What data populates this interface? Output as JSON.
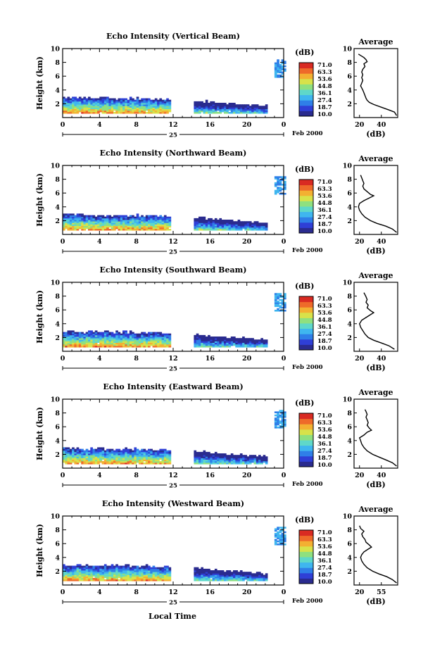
{
  "chart_data": [
    {
      "type": "heatmap",
      "title": "Echo Intensity (Vertical Beam)",
      "ylabel": "Height (km)",
      "x_ticks": [
        "0",
        "4",
        "8",
        "12",
        "16",
        "20",
        "0"
      ],
      "y_ticks": [
        "2",
        "4",
        "6",
        "8",
        "10"
      ],
      "xlim": [
        0,
        24
      ],
      "ylim": [
        0,
        10
      ],
      "date_label": "25",
      "month_label": "Feb 2000",
      "colorbar": {
        "unit": "(dB)",
        "levels": [
          "71.0",
          "63.3",
          "53.6",
          "44.8",
          "36.1",
          "27.4",
          "18.7",
          "10.0"
        ]
      },
      "average": {
        "title": "Average",
        "xlabel": "(dB)",
        "x_ticks": [
          "20",
          "40"
        ],
        "xlim": [
          15,
          55
        ],
        "ylim": [
          0,
          10
        ],
        "y_ticks": [
          "2",
          "4",
          "6",
          "8",
          "10"
        ],
        "profile": [
          [
            54,
            0.3
          ],
          [
            52,
            0.8
          ],
          [
            47,
            1.1
          ],
          [
            40,
            1.5
          ],
          [
            33,
            1.9
          ],
          [
            29,
            2.2
          ],
          [
            27,
            2.5
          ],
          [
            26,
            2.8
          ],
          [
            25,
            3.2
          ],
          [
            24,
            3.6
          ],
          [
            23,
            4.0
          ],
          [
            22,
            4.3
          ],
          [
            21,
            4.6
          ],
          [
            22,
            5.0
          ],
          [
            23,
            5.4
          ],
          [
            22,
            5.8
          ],
          [
            23,
            6.2
          ],
          [
            22,
            6.6
          ],
          [
            23,
            7.0
          ],
          [
            25,
            7.4
          ],
          [
            24,
            7.8
          ],
          [
            27,
            8.1
          ],
          [
            26,
            8.4
          ],
          [
            24,
            8.7
          ],
          [
            21,
            9.0
          ],
          [
            19,
            9.2
          ]
        ]
      }
    },
    {
      "type": "heatmap",
      "title": "Echo Intensity (Northward Beam)",
      "ylabel": "Height (km)",
      "x_ticks": [
        "0",
        "4",
        "8",
        "12",
        "16",
        "20",
        "0"
      ],
      "y_ticks": [
        "2",
        "4",
        "6",
        "8",
        "10"
      ],
      "xlim": [
        0,
        24
      ],
      "ylim": [
        0,
        10
      ],
      "date_label": "25",
      "month_label": "Feb 2000",
      "colorbar": {
        "unit": "(dB)",
        "levels": [
          "71.0",
          "63.3",
          "53.6",
          "44.8",
          "36.1",
          "27.4",
          "18.7",
          "10.0"
        ]
      },
      "average": {
        "title": "Average",
        "xlabel": "(dB)",
        "x_ticks": [
          "20",
          "40"
        ],
        "xlim": [
          15,
          55
        ],
        "ylim": [
          0,
          10
        ],
        "y_ticks": [
          "2",
          "4",
          "6",
          "8",
          "10"
        ],
        "profile": [
          [
            54,
            0.3
          ],
          [
            50,
            0.8
          ],
          [
            44,
            1.2
          ],
          [
            36,
            1.6
          ],
          [
            30,
            2.0
          ],
          [
            25,
            2.5
          ],
          [
            22,
            3.0
          ],
          [
            20,
            3.5
          ],
          [
            19,
            4.0
          ],
          [
            20,
            4.5
          ],
          [
            24,
            4.9
          ],
          [
            28,
            5.2
          ],
          [
            33,
            5.6
          ],
          [
            30,
            5.8
          ],
          [
            27,
            6.2
          ],
          [
            24,
            6.6
          ],
          [
            23,
            7.0
          ],
          [
            24,
            7.4
          ],
          [
            23,
            7.8
          ],
          [
            22,
            8.2
          ],
          [
            21,
            8.6
          ]
        ]
      }
    },
    {
      "type": "heatmap",
      "title": "Echo Intensity (Southward Beam)",
      "ylabel": "Height (km)",
      "x_ticks": [
        "0",
        "4",
        "8",
        "12",
        "16",
        "20",
        "0"
      ],
      "y_ticks": [
        "2",
        "4",
        "6",
        "8",
        "10"
      ],
      "xlim": [
        0,
        24
      ],
      "ylim": [
        0,
        10
      ],
      "date_label": "25",
      "month_label": "Feb 2000",
      "colorbar": {
        "unit": "(dB)",
        "levels": [
          "71.0",
          "63.3",
          "53.6",
          "44.8",
          "36.1",
          "27.4",
          "18.7",
          "10.0"
        ]
      },
      "average": {
        "title": "Average",
        "xlabel": "(dB)",
        "x_ticks": [
          "20",
          "40"
        ],
        "xlim": [
          15,
          55
        ],
        "ylim": [
          0,
          10
        ],
        "y_ticks": [
          "2",
          "4",
          "6",
          "8",
          "10"
        ],
        "profile": [
          [
            52,
            0.3
          ],
          [
            47,
            0.8
          ],
          [
            40,
            1.2
          ],
          [
            33,
            1.6
          ],
          [
            28,
            2.0
          ],
          [
            25,
            2.5
          ],
          [
            23,
            3.0
          ],
          [
            21,
            3.5
          ],
          [
            20,
            4.0
          ],
          [
            22,
            4.5
          ],
          [
            26,
            4.9
          ],
          [
            29,
            5.2
          ],
          [
            33,
            5.6
          ],
          [
            30,
            5.9
          ],
          [
            27,
            6.3
          ],
          [
            28,
            6.7
          ],
          [
            26,
            7.1
          ],
          [
            27,
            7.5
          ],
          [
            26,
            7.9
          ],
          [
            25,
            8.2
          ],
          [
            24,
            8.5
          ]
        ]
      }
    },
    {
      "type": "heatmap",
      "title": "Echo Intensity (Eastward Beam)",
      "ylabel": "Height (km)",
      "x_ticks": [
        "0",
        "4",
        "8",
        "12",
        "16",
        "20",
        "0"
      ],
      "y_ticks": [
        "2",
        "4",
        "6",
        "8",
        "10"
      ],
      "xlim": [
        0,
        24
      ],
      "ylim": [
        0,
        10
      ],
      "date_label": "25",
      "month_label": "Feb 2000",
      "colorbar": {
        "unit": "(dB)",
        "levels": [
          "71.0",
          "63.3",
          "53.6",
          "44.8",
          "36.1",
          "27.4",
          "18.7",
          "10.0"
        ]
      },
      "average": {
        "title": "Average",
        "xlabel": "(dB)",
        "x_ticks": [
          "20",
          "40"
        ],
        "xlim": [
          15,
          55
        ],
        "ylim": [
          0,
          10
        ],
        "y_ticks": [
          "2",
          "4",
          "6",
          "8",
          "10"
        ],
        "profile": [
          [
            54,
            0.3
          ],
          [
            50,
            0.8
          ],
          [
            44,
            1.2
          ],
          [
            38,
            1.6
          ],
          [
            32,
            2.0
          ],
          [
            27,
            2.5
          ],
          [
            24,
            3.0
          ],
          [
            22,
            3.5
          ],
          [
            21,
            4.0
          ],
          [
            20,
            4.4
          ],
          [
            24,
            4.8
          ],
          [
            27,
            5.2
          ],
          [
            31,
            5.5
          ],
          [
            29,
            5.8
          ],
          [
            27,
            6.2
          ],
          [
            28,
            6.6
          ],
          [
            27,
            7.0
          ],
          [
            26,
            7.4
          ],
          [
            27,
            7.8
          ],
          [
            26,
            8.2
          ],
          [
            25,
            8.5
          ]
        ]
      }
    },
    {
      "type": "heatmap",
      "title": "Echo Intensity (Westward Beam)",
      "ylabel": "Height (km)",
      "x_ticks": [
        "0",
        "4",
        "8",
        "12",
        "16",
        "20",
        "0"
      ],
      "y_ticks": [
        "2",
        "4",
        "6",
        "8",
        "10"
      ],
      "xlim": [
        0,
        24
      ],
      "ylim": [
        0,
        10
      ],
      "date_label": "25",
      "month_label": "Feb 2000",
      "colorbar": {
        "unit": "(dB)",
        "levels": [
          "71.0",
          "63.3",
          "53.6",
          "44.8",
          "36.1",
          "27.4",
          "18.7",
          "10.0"
        ]
      },
      "average": {
        "title": "Average",
        "xlabel": "(dB)",
        "x_ticks": [
          "20",
          "55"
        ],
        "xlim": [
          15,
          55
        ],
        "ylim": [
          0,
          10
        ],
        "y_ticks": [
          "2",
          "4",
          "6",
          "8",
          "10"
        ],
        "profile": [
          [
            54,
            0.3
          ],
          [
            50,
            0.8
          ],
          [
            45,
            1.2
          ],
          [
            38,
            1.6
          ],
          [
            32,
            2.0
          ],
          [
            27,
            2.5
          ],
          [
            24,
            3.0
          ],
          [
            22,
            3.5
          ],
          [
            21,
            4.0
          ],
          [
            22,
            4.4
          ],
          [
            24,
            4.8
          ],
          [
            28,
            5.2
          ],
          [
            31,
            5.5
          ],
          [
            29,
            5.8
          ],
          [
            26,
            6.2
          ],
          [
            25,
            6.6
          ],
          [
            23,
            7.0
          ],
          [
            22,
            7.4
          ],
          [
            24,
            7.8
          ],
          [
            21,
            8.2
          ],
          [
            20,
            8.6
          ]
        ]
      }
    }
  ],
  "xlabel_bottom": "Local Time"
}
